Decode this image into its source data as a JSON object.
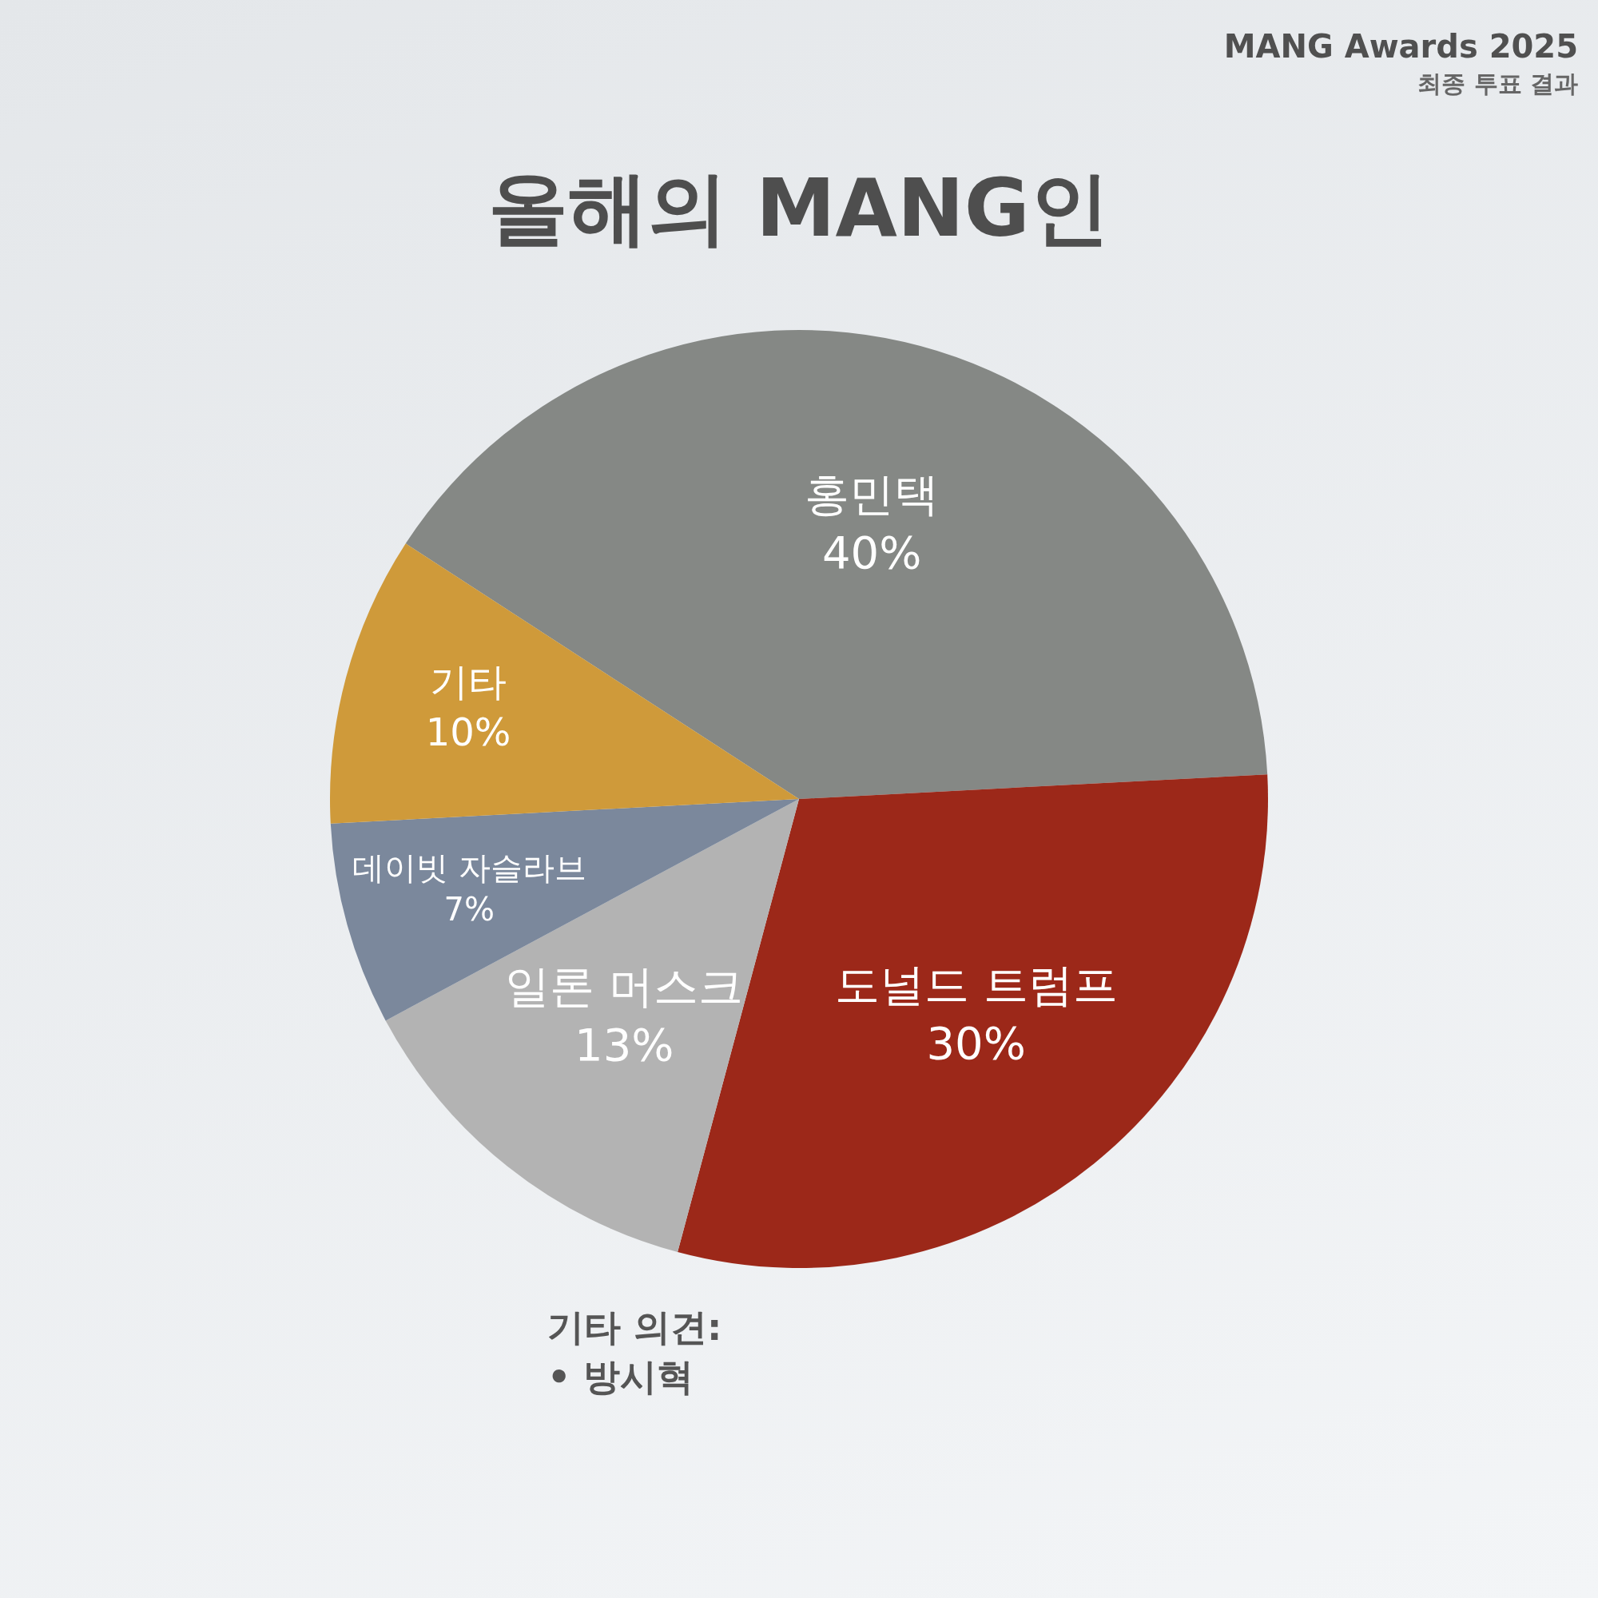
{
  "chart_data": {
    "type": "pie",
    "title": "올해의 MANG인",
    "categories": [
      "홍민택",
      "도널드 트럼프",
      "일론 머스크",
      "데이빗 자슬라브",
      "기타"
    ],
    "values": [
      40,
      30,
      13,
      7,
      10
    ],
    "colors": [
      "#858885",
      "#9c2819",
      "#b3b3b3",
      "#7b889c",
      "#cf9a3a"
    ],
    "value_labels": [
      "40%",
      "30%",
      "13%",
      "7%",
      "10%"
    ],
    "legend": false,
    "annotations": [
      "MANG Awards 2025",
      "최종 투표 결과",
      "기타 의견:",
      "• 방시혁"
    ]
  }
}
